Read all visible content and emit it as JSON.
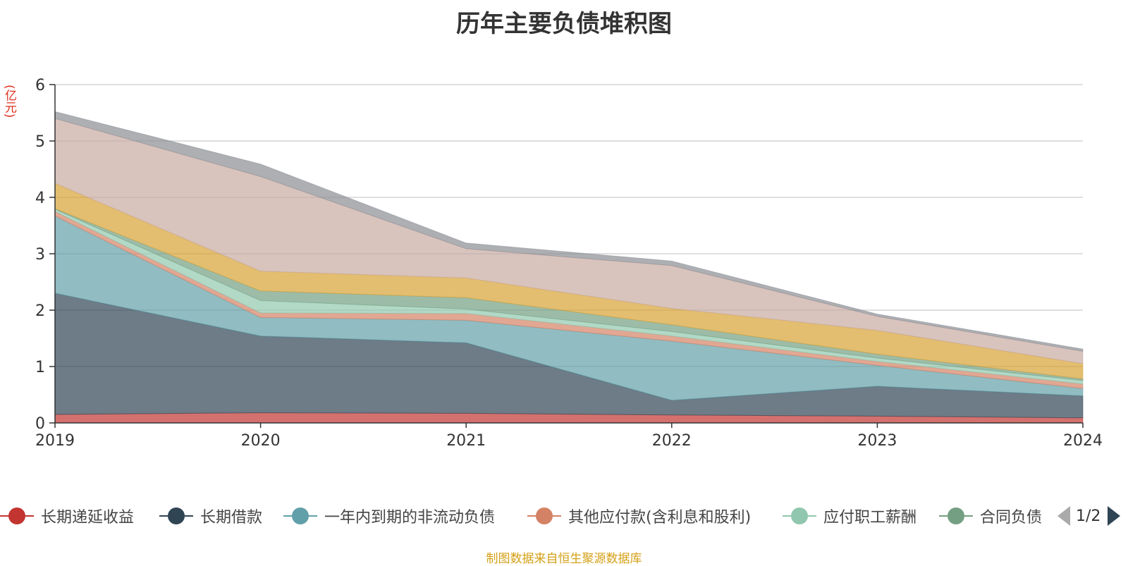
{
  "title": "历年主要负债堆积图",
  "unit_label": "(亿元)",
  "footer": "制图数据来自恒生聚源数据库",
  "pager": {
    "text": "1/2"
  },
  "legend": [
    {
      "name": "长期递延收益",
      "color": "#c23531"
    },
    {
      "name": "长期借款",
      "color": "#2f4554"
    },
    {
      "name": "一年内到期的非流动负债",
      "color": "#61a0a8"
    },
    {
      "name": "其他应付款(含利息和股利)",
      "color": "#d48265"
    },
    {
      "name": "应付职工薪酬",
      "color": "#91c7ae"
    },
    {
      "name": "合同负债",
      "color": "#749f83"
    }
  ],
  "chart_data": {
    "type": "area",
    "stacked": true,
    "title": "历年主要负债堆积图",
    "ylabel": "(亿元)",
    "ylim": [
      0,
      6
    ],
    "yticks": [
      "0",
      "1",
      "2",
      "3",
      "4",
      "5",
      "6"
    ],
    "grid": true,
    "x": [
      "2019",
      "2020",
      "2021",
      "2022",
      "2023",
      "2024"
    ],
    "series": [
      {
        "name": "长期递延收益",
        "color": "#c23531",
        "values": [
          0.15,
          0.18,
          0.17,
          0.14,
          0.12,
          0.09
        ]
      },
      {
        "name": "长期借款",
        "color": "#2f4554",
        "values": [
          2.15,
          1.36,
          1.25,
          0.26,
          0.53,
          0.39
        ]
      },
      {
        "name": "一年内到期的非流动负债",
        "color": "#61a0a8",
        "values": [
          1.37,
          0.33,
          0.4,
          1.05,
          0.37,
          0.13
        ]
      },
      {
        "name": "其他应付款(含利息和股利)",
        "color": "#d48265",
        "values": [
          0.08,
          0.08,
          0.12,
          0.09,
          0.07,
          0.08
        ]
      },
      {
        "name": "应付职工薪酬",
        "color": "#91c7ae",
        "values": [
          0.04,
          0.22,
          0.08,
          0.08,
          0.06,
          0.06
        ]
      },
      {
        "name": "合同负债",
        "color": "#749f83",
        "values": [
          0.01,
          0.17,
          0.2,
          0.12,
          0.07,
          0.03
        ]
      },
      {
        "name": "",
        "color": "#d7a233",
        "values": [
          0.45,
          0.35,
          0.35,
          0.29,
          0.42,
          0.27
        ]
      },
      {
        "name": "",
        "color": "#c7aaa1",
        "values": [
          1.15,
          1.68,
          0.52,
          0.76,
          0.25,
          0.22
        ]
      },
      {
        "name": "",
        "color": "#8a8d93",
        "values": [
          0.12,
          0.22,
          0.1,
          0.08,
          0.04,
          0.04
        ]
      }
    ]
  }
}
